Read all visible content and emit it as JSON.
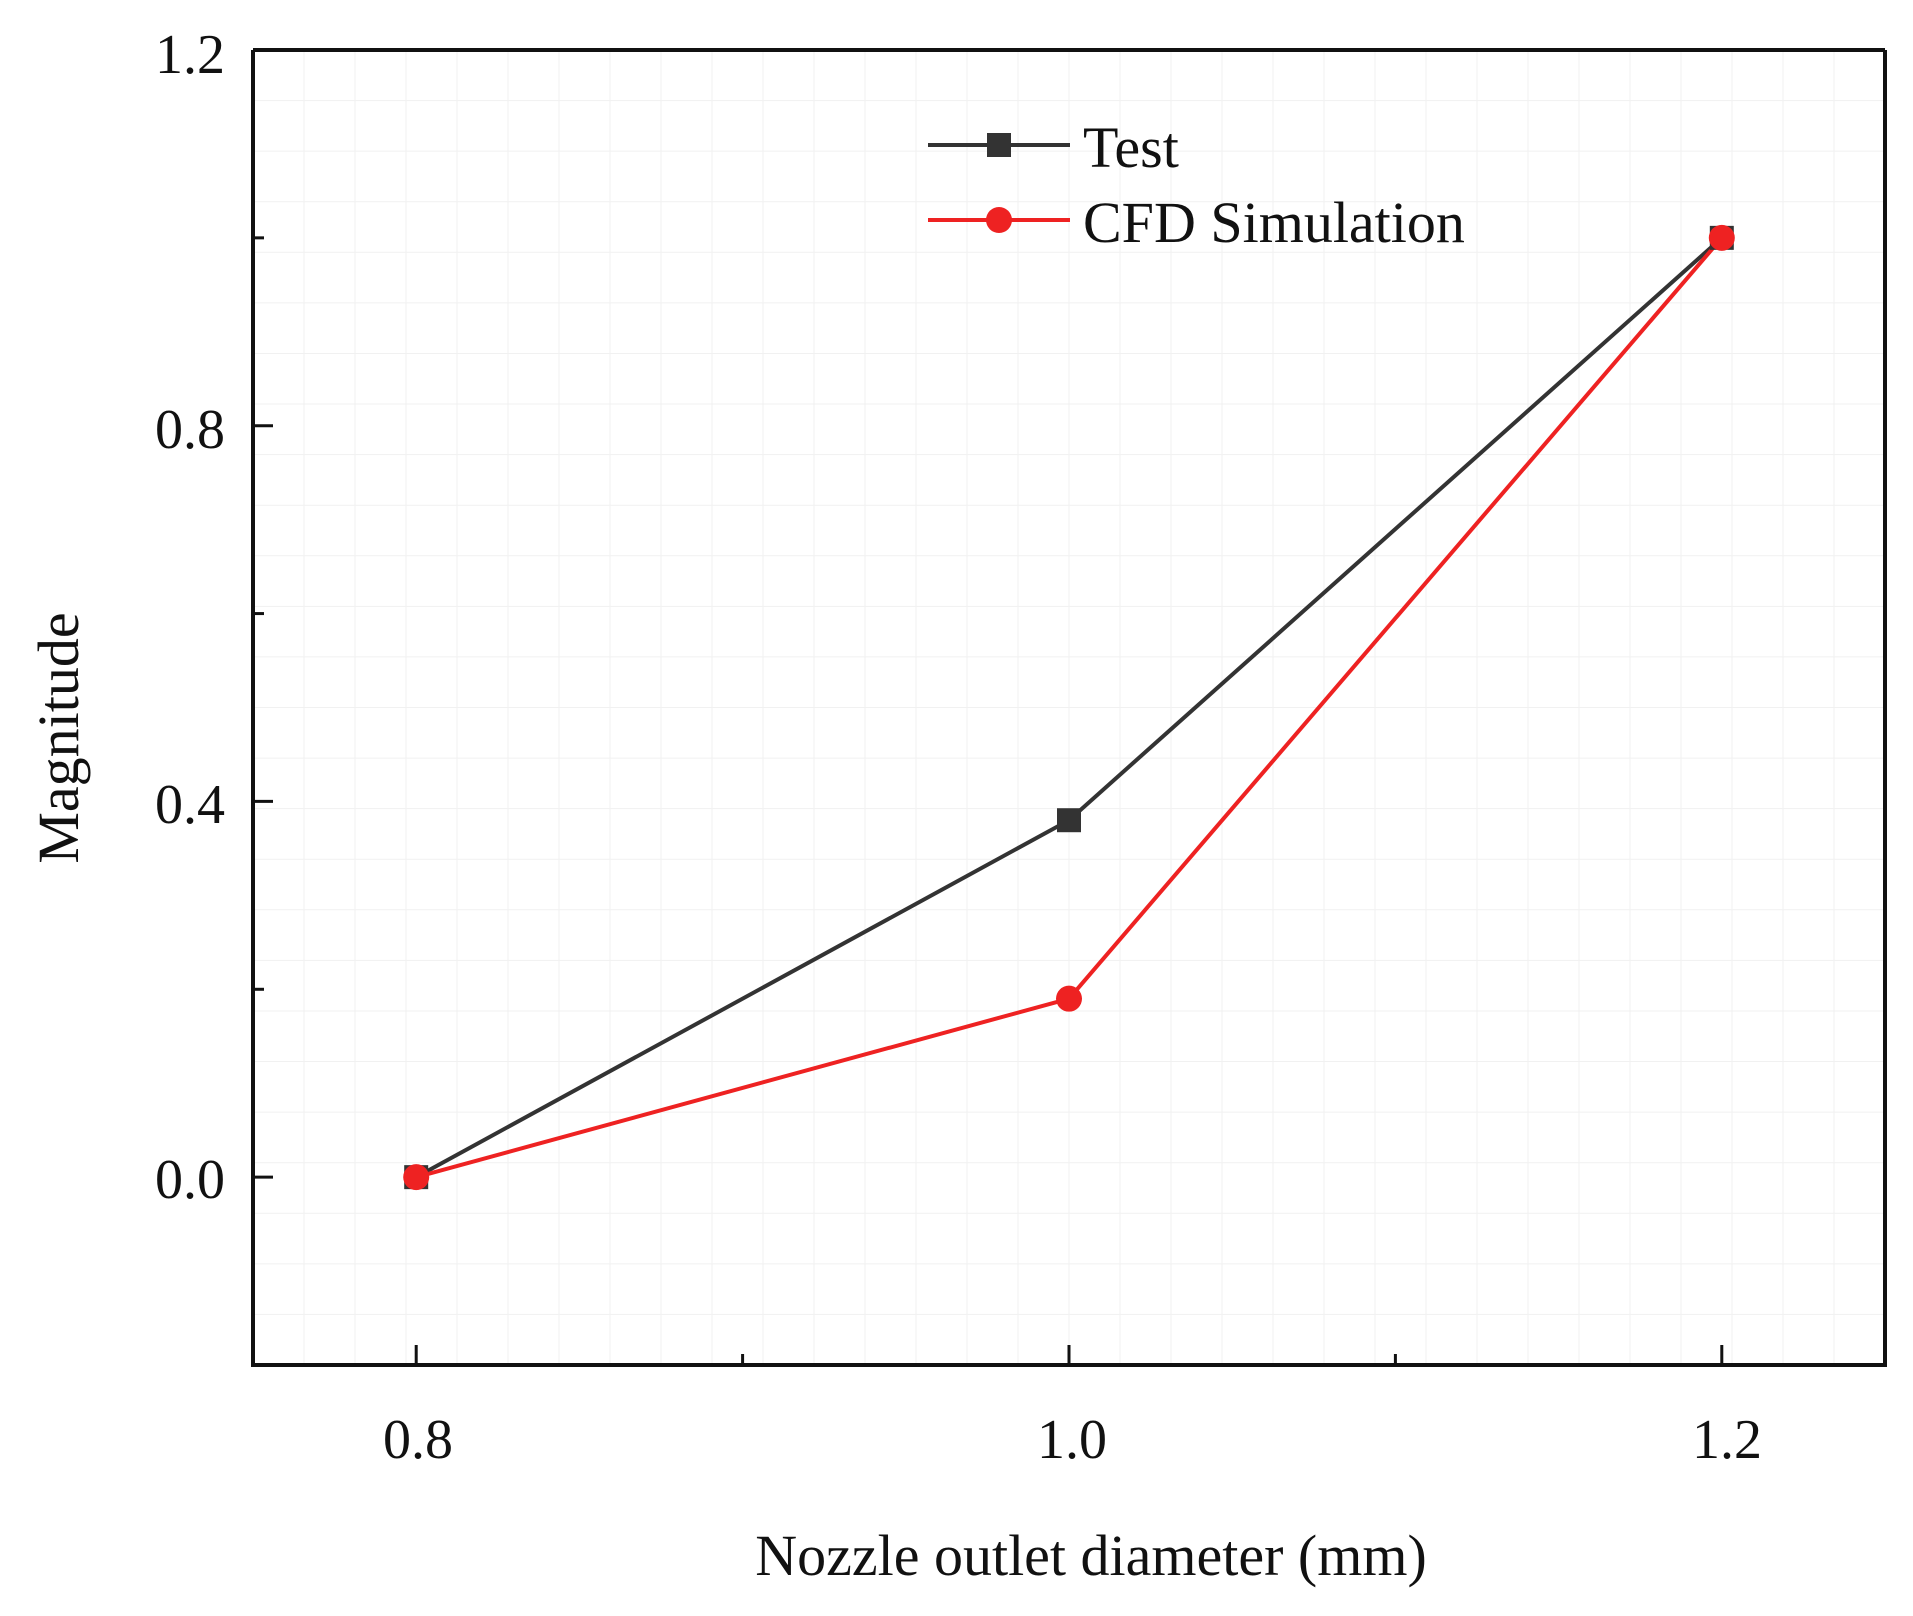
{
  "colors": {
    "test": "#333333",
    "cfd": "#ee2222",
    "axis": "#111111",
    "plot_background": "#ffffff"
  },
  "chart_data": {
    "type": "line",
    "title": "",
    "xlabel": "Nozzle outlet diameter (mm)",
    "ylabel": "Magnitude",
    "x_ticks": [
      "0.8",
      "1.0",
      "1.2"
    ],
    "y_ticks": [
      "0.0",
      "0.4",
      "0.8",
      "1.2"
    ],
    "xlim": [
      0.75,
      1.25
    ],
    "ylim": [
      -0.2,
      1.2
    ],
    "legend_position": "top-center",
    "series": [
      {
        "name": "Test",
        "marker": "square",
        "x": [
          0.8,
          1.0,
          1.2
        ],
        "y": [
          0.0,
          0.38,
          1.0
        ]
      },
      {
        "name": "CFD Simulation",
        "marker": "circle",
        "x": [
          0.8,
          1.0,
          1.2
        ],
        "y": [
          0.0,
          0.19,
          1.0
        ]
      }
    ]
  }
}
